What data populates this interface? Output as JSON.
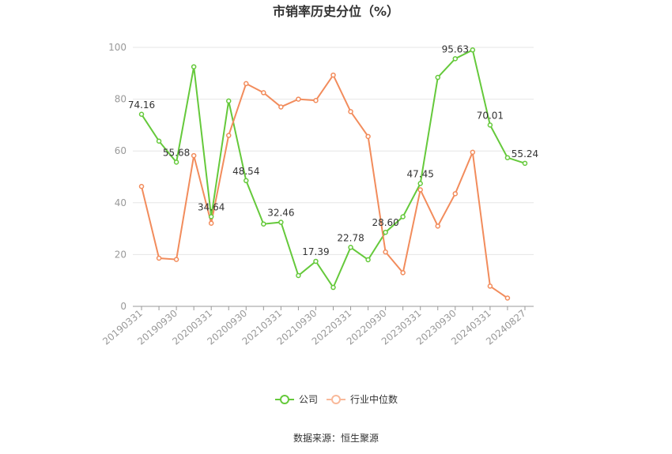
{
  "chart_data": {
    "type": "line",
    "title": "市销率历史分位（%）",
    "source": "数据来源：恒生聚源",
    "ylim": [
      0,
      100
    ],
    "yticks": [
      0,
      20,
      40,
      60,
      80,
      100
    ],
    "grid": true,
    "legend_position": "bottom",
    "x": [
      "20190331",
      "20190630",
      "20190930",
      "20191231",
      "20200331",
      "20200630",
      "20200930",
      "20201231",
      "20210331",
      "20210630",
      "20210930",
      "20211231",
      "20220331",
      "20220630",
      "20220930",
      "20221231",
      "20230331",
      "20230630",
      "20230930",
      "20231231",
      "20240331",
      "20240630",
      "20240827"
    ],
    "xtick_labels": [
      "20190331",
      "20190930",
      "20200331",
      "20200930",
      "20210331",
      "20210930",
      "20220331",
      "20220930",
      "20230331",
      "20230930",
      "20240331",
      "20240827"
    ],
    "series": [
      {
        "name": "公司",
        "color": "#65c93b",
        "values": [
          74.16,
          63.8,
          55.68,
          92.5,
          34.64,
          79.3,
          48.54,
          31.8,
          32.46,
          11.9,
          17.39,
          7.3,
          22.78,
          18.0,
          28.6,
          34.6,
          47.45,
          88.4,
          95.63,
          99.0,
          70.01,
          57.4,
          55.24
        ],
        "labels": {
          "0": "74.16",
          "2": "55.68",
          "4": "34.64",
          "6": "48.54",
          "8": "32.46",
          "10": "17.39",
          "12": "22.78",
          "14": "28.60",
          "16": "47.45",
          "18": "95.63",
          "20": "70.01",
          "22": "55.24"
        }
      },
      {
        "name": "行业中位数",
        "color": "#f28c5c",
        "values": [
          46.3,
          18.6,
          18.1,
          58.2,
          32.1,
          66.0,
          86.0,
          82.5,
          77.0,
          80.0,
          79.5,
          89.3,
          75.2,
          65.6,
          21.0,
          13.0,
          45.0,
          31.0,
          43.5,
          59.5,
          7.8,
          3.2,
          null
        ]
      }
    ]
  }
}
